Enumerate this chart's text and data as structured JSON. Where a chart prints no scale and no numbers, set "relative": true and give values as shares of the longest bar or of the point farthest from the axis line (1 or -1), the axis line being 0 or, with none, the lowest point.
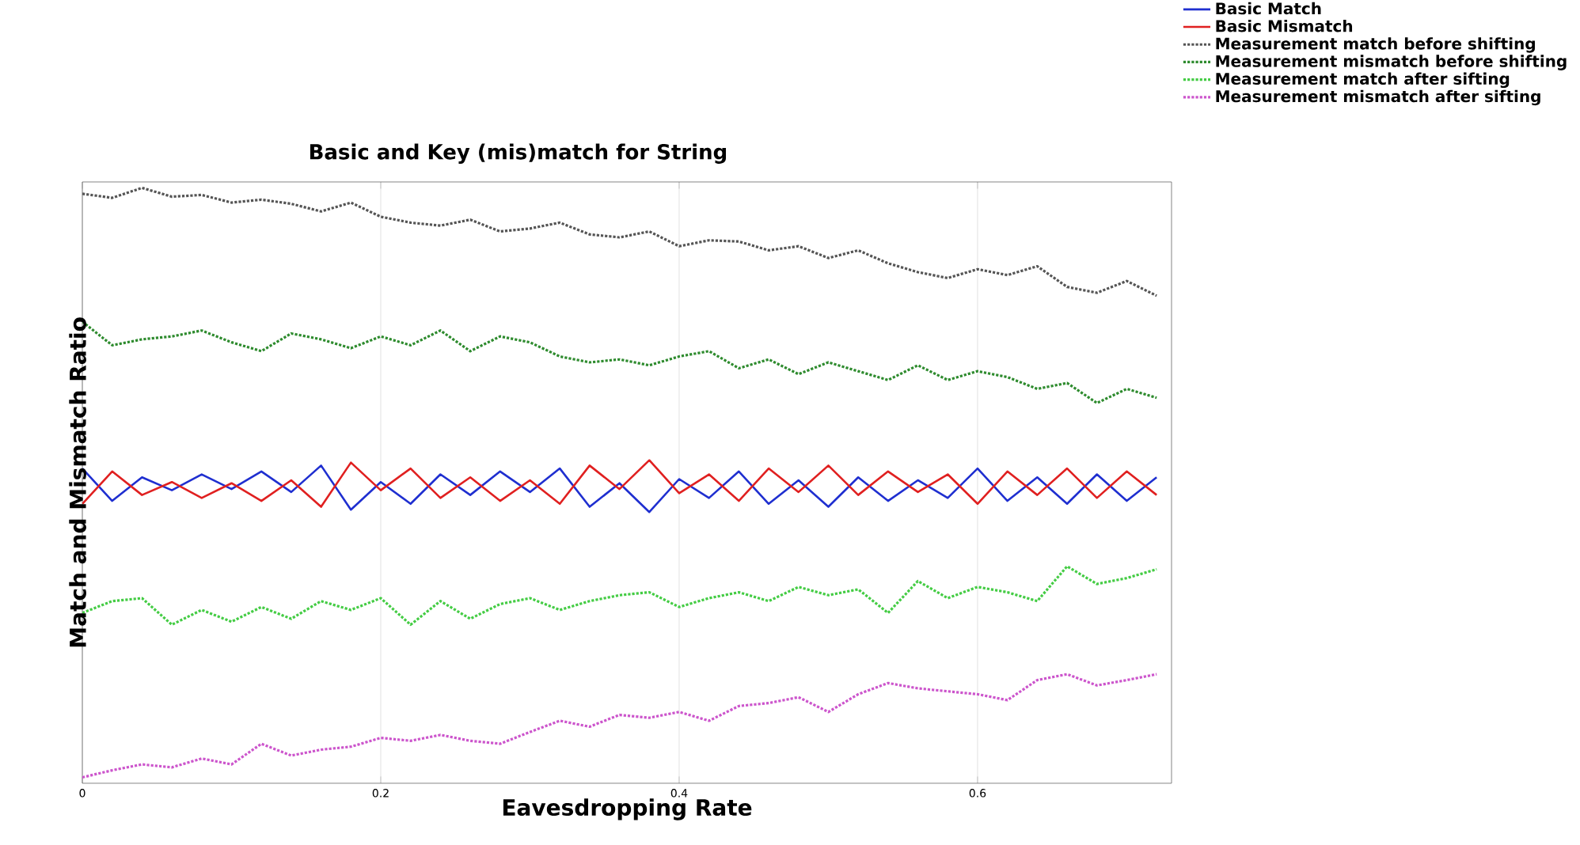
{
  "chart_data": {
    "type": "line",
    "title": "Basic and Key (mis)match for String",
    "xlabel": "Eavesdropping Rate",
    "ylabel": "Match and Mismatch Ratio",
    "relative": true,
    "xlim": [
      0,
      0.73
    ],
    "xticks": [
      0,
      0.2,
      0.4,
      0.6
    ],
    "grid": "x",
    "legend": "top right",
    "tick_labels": "x",
    "marker": "none",
    "x": [
      0,
      0.02,
      0.04,
      0.06,
      0.08,
      0.1,
      0.12,
      0.14,
      0.16,
      0.18,
      0.2,
      0.22,
      0.24,
      0.26,
      0.28,
      0.3,
      0.32,
      0.34,
      0.36,
      0.38,
      0.4,
      0.42,
      0.44,
      0.46,
      0.48,
      0.5,
      0.52,
      0.54,
      0.56,
      0.58,
      0.6,
      0.62,
      0.64,
      0.66,
      0.68,
      0.7,
      0.72
    ],
    "series": [
      {
        "name": "Basic Match",
        "color": "#1f2fd0",
        "line_style": "solid",
        "values": [
          0.524,
          0.469,
          0.509,
          0.487,
          0.514,
          0.489,
          0.519,
          0.484,
          0.529,
          0.454,
          0.501,
          0.464,
          0.514,
          0.479,
          0.519,
          0.484,
          0.524,
          0.459,
          0.499,
          0.45,
          0.506,
          0.474,
          0.519,
          0.464,
          0.504,
          0.459,
          0.509,
          0.469,
          0.504,
          0.474,
          0.524,
          0.469,
          0.509,
          0.464,
          0.514,
          0.469,
          0.509
        ]
      },
      {
        "name": "Basic Mismatch",
        "color": "#e02020",
        "line_style": "solid",
        "values": [
          0.464,
          0.519,
          0.479,
          0.501,
          0.474,
          0.499,
          0.469,
          0.504,
          0.459,
          0.534,
          0.487,
          0.524,
          0.474,
          0.509,
          0.469,
          0.504,
          0.464,
          0.529,
          0.489,
          0.538,
          0.482,
          0.514,
          0.469,
          0.524,
          0.484,
          0.529,
          0.479,
          0.519,
          0.484,
          0.514,
          0.464,
          0.519,
          0.479,
          0.524,
          0.474,
          0.519,
          0.479
        ]
      },
      {
        "name": "Measurement match before shifting",
        "color": "#555555",
        "line_style": "dotted",
        "values": [
          0.99,
          0.983,
          1.0,
          0.985,
          0.988,
          0.975,
          0.98,
          0.973,
          0.96,
          0.975,
          0.951,
          0.941,
          0.936,
          0.946,
          0.926,
          0.931,
          0.941,
          0.921,
          0.916,
          0.926,
          0.901,
          0.911,
          0.909,
          0.894,
          0.901,
          0.881,
          0.894,
          0.872,
          0.857,
          0.847,
          0.862,
          0.852,
          0.867,
          0.832,
          0.822,
          0.842,
          0.817
        ]
      },
      {
        "name": "Measurement mismatch before shifting",
        "color": "#2e8b2e",
        "line_style": "dotted",
        "values": [
          0.773,
          0.733,
          0.743,
          0.748,
          0.758,
          0.738,
          0.723,
          0.753,
          0.743,
          0.728,
          0.748,
          0.733,
          0.758,
          0.723,
          0.748,
          0.738,
          0.714,
          0.704,
          0.709,
          0.699,
          0.714,
          0.723,
          0.694,
          0.709,
          0.684,
          0.704,
          0.689,
          0.674,
          0.699,
          0.674,
          0.689,
          0.679,
          0.659,
          0.669,
          0.635,
          0.659,
          0.644
        ]
      },
      {
        "name": "Measurement match after sifting",
        "color": "#44cc44",
        "line_style": "dotted",
        "values": [
          0.279,
          0.299,
          0.304,
          0.259,
          0.284,
          0.264,
          0.289,
          0.269,
          0.299,
          0.284,
          0.304,
          0.259,
          0.299,
          0.269,
          0.294,
          0.304,
          0.284,
          0.299,
          0.309,
          0.314,
          0.289,
          0.304,
          0.314,
          0.299,
          0.323,
          0.309,
          0.319,
          0.279,
          0.333,
          0.304,
          0.323,
          0.314,
          0.299,
          0.358,
          0.328,
          0.338,
          0.353
        ]
      },
      {
        "name": "Measurement mismatch after sifting",
        "color": "#cc55cc",
        "line_style": "dotted",
        "values": [
          0,
          0.012,
          0.022,
          0.017,
          0.032,
          0.022,
          0.057,
          0.037,
          0.047,
          0.052,
          0.067,
          0.062,
          0.072,
          0.062,
          0.057,
          0.077,
          0.096,
          0.086,
          0.106,
          0.101,
          0.111,
          0.096,
          0.121,
          0.126,
          0.136,
          0.111,
          0.141,
          0.16,
          0.151,
          0.146,
          0.141,
          0.131,
          0.165,
          0.175,
          0.156,
          0.165,
          0.175
        ]
      }
    ]
  }
}
